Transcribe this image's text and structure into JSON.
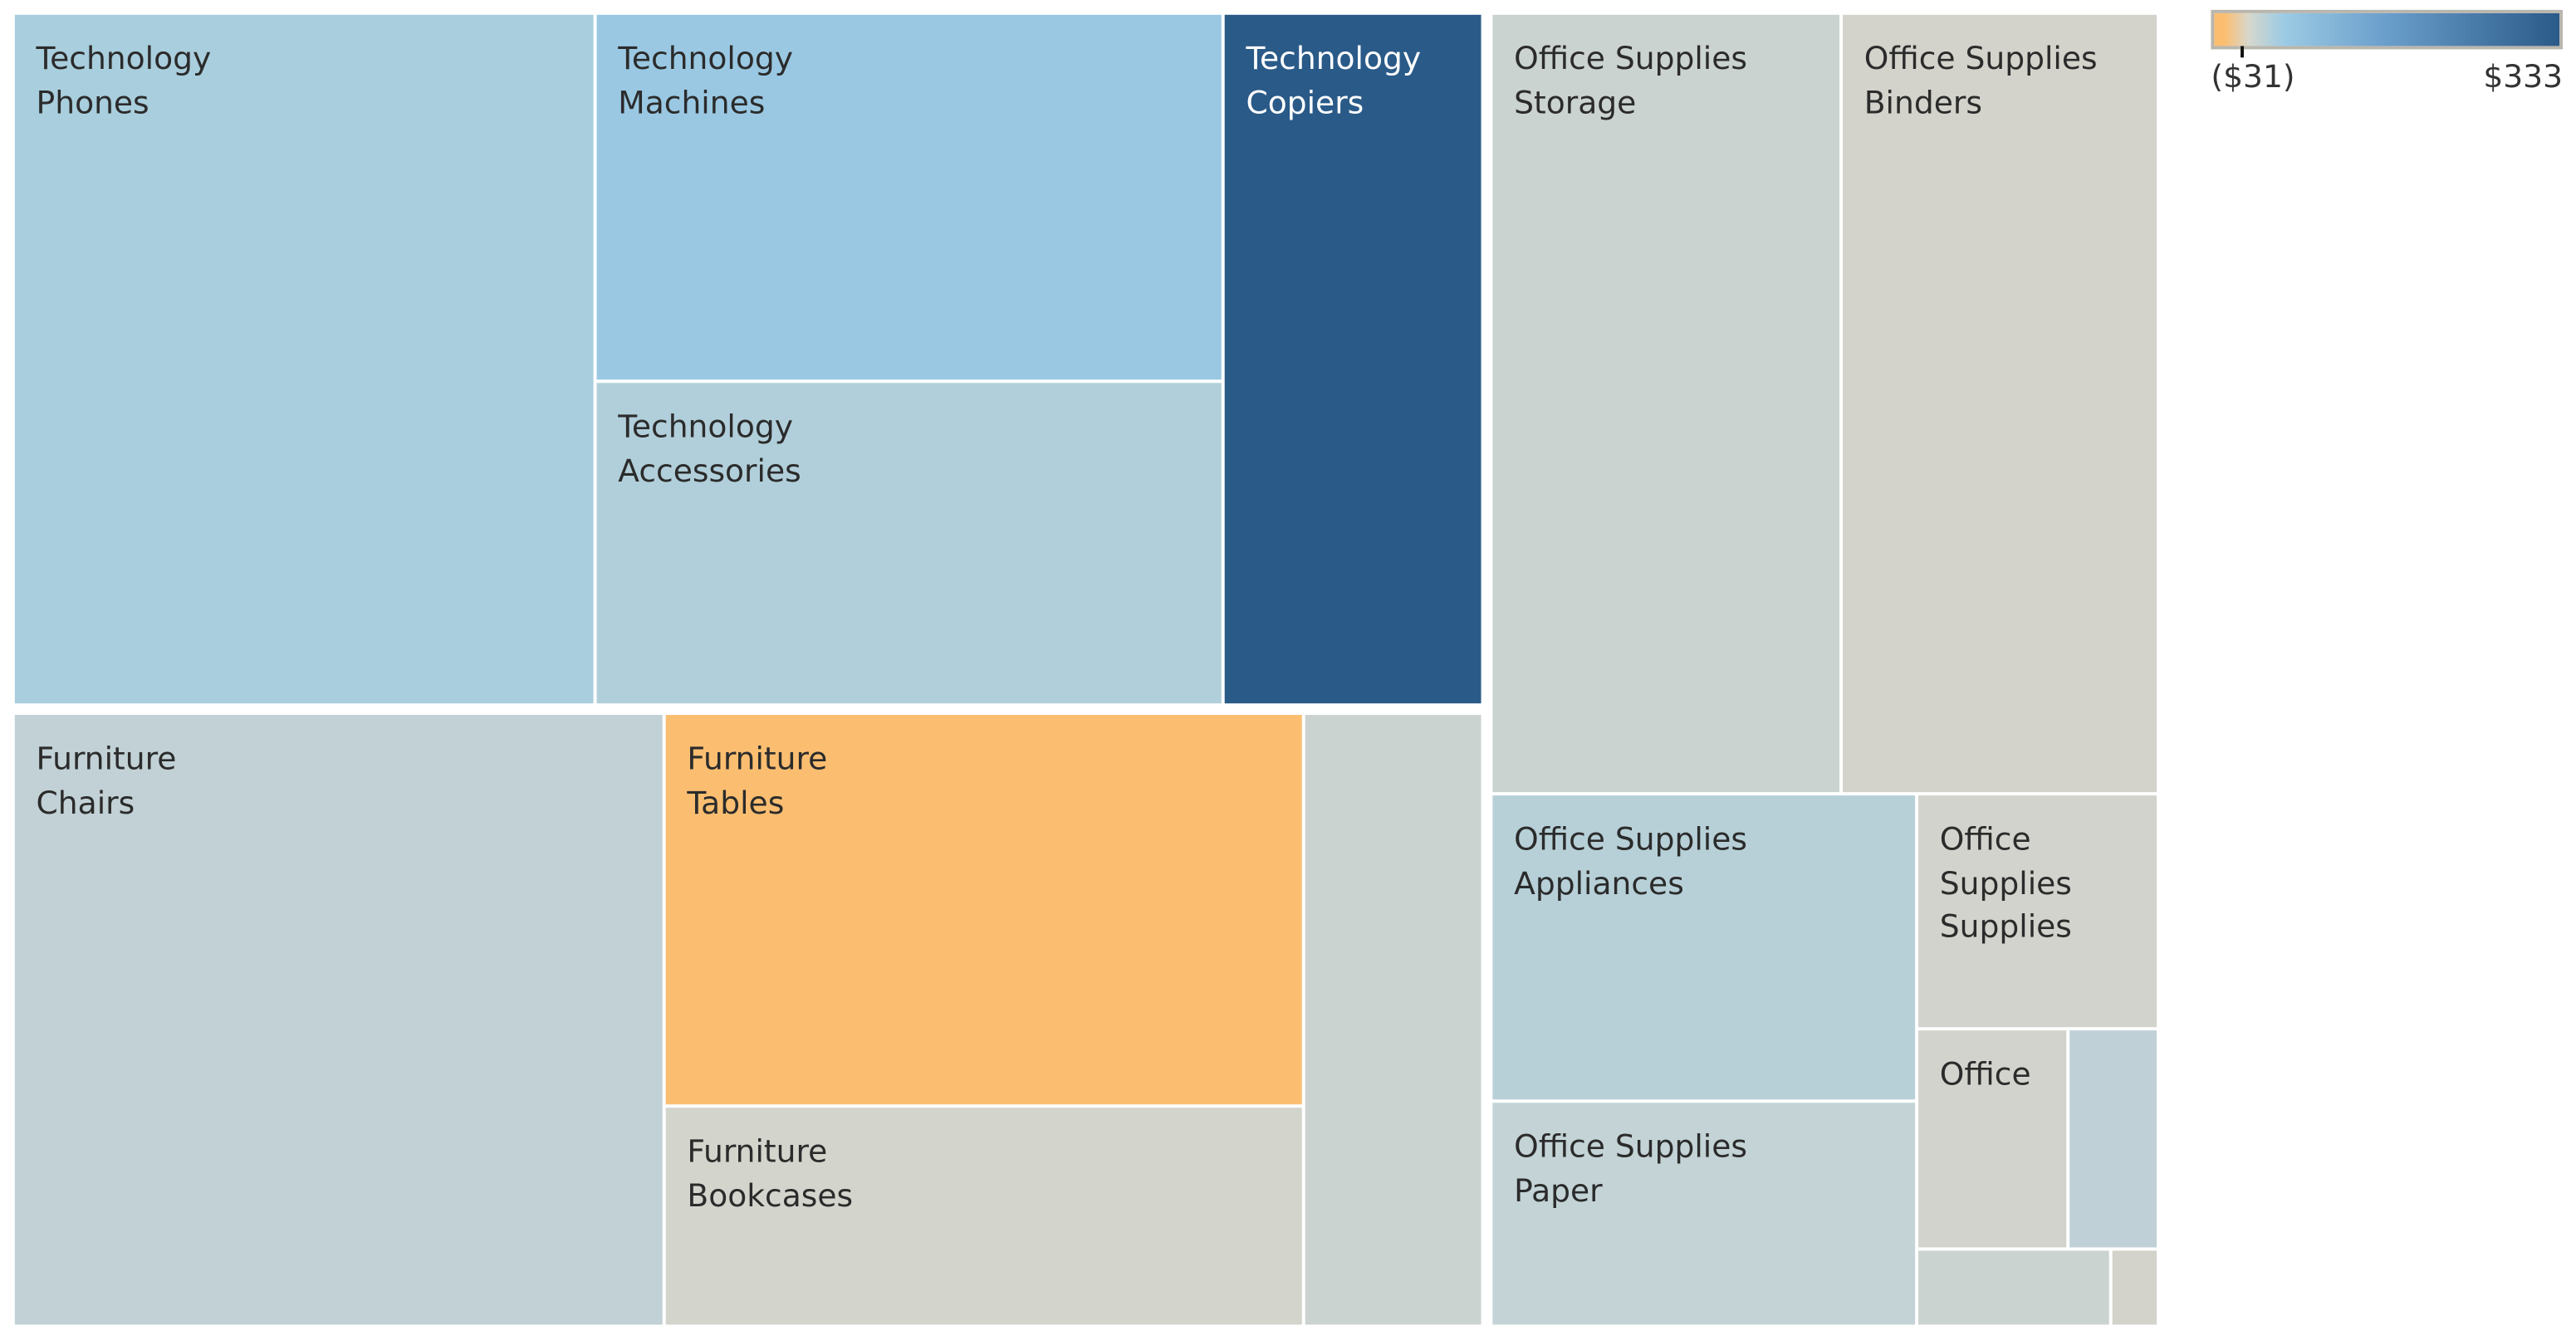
{
  "chart_data": {
    "type": "treemap",
    "title": "",
    "color_metric": "Profit",
    "legend": {
      "min_label": "($31)",
      "max_label": "$333",
      "min": -31,
      "max": 333,
      "placement": "top-right",
      "gradient": [
        "#fbbe71",
        "#d7d7cc",
        "#9ccbe4",
        "#6a9ecb",
        "#2a5a88"
      ]
    },
    "cells": [
      {
        "category": "Technology",
        "sub_category": "Phones",
        "label_lines": [
          "Technology",
          "Phones"
        ],
        "color": "#a9cedd"
      },
      {
        "category": "Technology",
        "sub_category": "Machines",
        "label_lines": [
          "Technology",
          "Machines"
        ],
        "color": "#9ac8e2"
      },
      {
        "category": "Technology",
        "sub_category": "Accessories",
        "label_lines": [
          "Technology",
          "Accessories"
        ],
        "color": "#b1cfda"
      },
      {
        "category": "Technology",
        "sub_category": "Copiers",
        "label_lines": [
          "Technology",
          "Copiers"
        ],
        "color": "#2a5a88",
        "text_color": "#ffffff"
      },
      {
        "category": "Furniture",
        "sub_category": "Chairs",
        "label_lines": [
          "Furniture",
          "Chairs"
        ],
        "color": "#c1d1d5"
      },
      {
        "category": "Furniture",
        "sub_category": "Tables",
        "label_lines": [
          "Furniture",
          "Tables"
        ],
        "color": "#fbbe71"
      },
      {
        "category": "Furniture",
        "sub_category": "Bookcases",
        "label_lines": [
          "Furniture",
          "Bookcases"
        ],
        "color": "#d3d5cd"
      },
      {
        "category": "Furniture",
        "sub_category": "",
        "label_lines": [],
        "color": "#cbd3d1"
      },
      {
        "category": "Office Supplies",
        "sub_category": "Storage",
        "label_lines": [
          "Office Supplies",
          "Storage"
        ],
        "color": "#cbd3d0"
      },
      {
        "category": "Office Supplies",
        "sub_category": "Binders",
        "label_lines": [
          "Office Supplies",
          "Binders"
        ],
        "color": "#d3d3cb"
      },
      {
        "category": "Office Supplies",
        "sub_category": "Appliances",
        "label_lines": [
          "Office Supplies",
          "Appliances"
        ],
        "color": "#b7d0d8"
      },
      {
        "category": "Office Supplies",
        "sub_category": "Paper",
        "label_lines": [
          "Office Supplies",
          "Paper"
        ],
        "color": "#c3d3d6"
      },
      {
        "category": "Office Supplies",
        "sub_category": "Supplies",
        "label_lines": [
          "Office",
          "Supplies",
          "Supplies"
        ],
        "color": "#d3d3cd"
      },
      {
        "category": "Office Supplies",
        "sub_category": "",
        "label_lines": [
          "Office"
        ],
        "color": "#d3d3cd"
      },
      {
        "category": "Office Supplies",
        "sub_category": "",
        "label_lines": [],
        "color": "#bfd0d6"
      },
      {
        "category": "Office Supplies",
        "sub_category": "",
        "label_lines": [],
        "color": "#cbd3d0"
      },
      {
        "category": "Office Supplies",
        "sub_category": "",
        "label_lines": [],
        "color": "#d3d3cb"
      }
    ]
  }
}
